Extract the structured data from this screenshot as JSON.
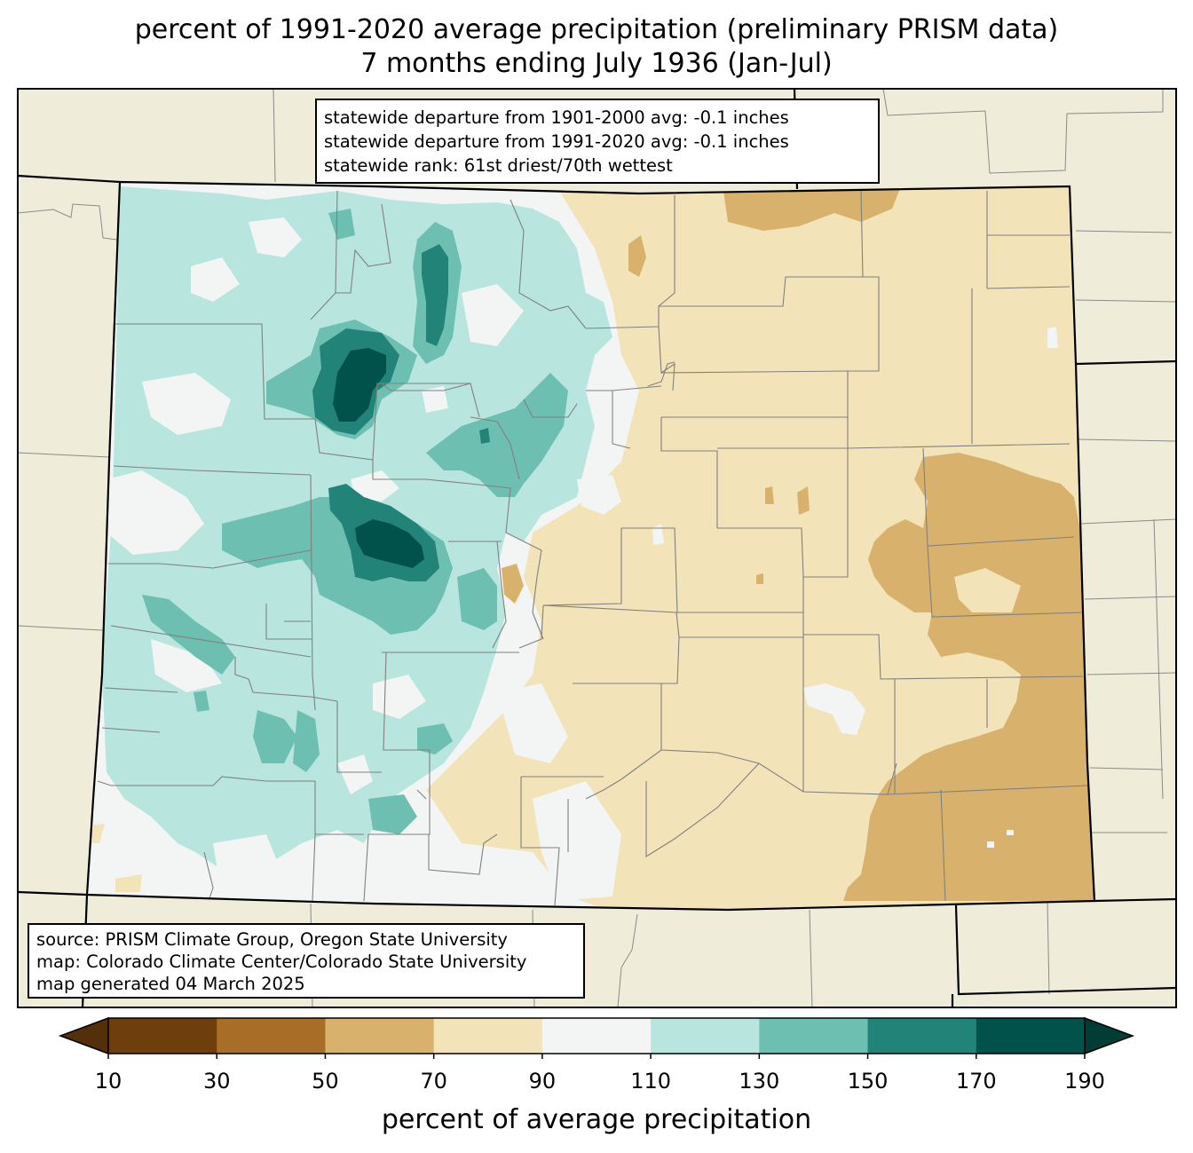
{
  "title": {
    "line1": "percent of 1991-2020 average precipitation (preliminary PRISM data)",
    "line2": "7 months ending July 1936 (Jan-Jul)"
  },
  "stats_box": {
    "line1": "statewide departure from 1901-2000 avg: -0.1 inches",
    "line2": "statewide departure from 1991-2020 avg: -0.1 inches",
    "line3": "statewide rank: 61st driest/70th wettest"
  },
  "source_box": {
    "line1": "source: PRISM Climate Group, Oregon State University",
    "line2": "map: Colorado Climate Center/Colorado State University",
    "line3": "map generated 04 March 2025"
  },
  "colorbar": {
    "label": "percent of average precipitation",
    "ticks": [
      "10",
      "30",
      "50",
      "70",
      "90",
      "110",
      "130",
      "150",
      "170",
      "190"
    ],
    "colors": [
      "#6e3f0c",
      "#a86d26",
      "#d8b26d",
      "#f2e3b8",
      "#f3f5f4",
      "#b9e5df",
      "#6dbfb2",
      "#228479",
      "#00524a"
    ],
    "under_color": "#54300a",
    "over_color": "#003d35"
  },
  "map_colors": {
    "background": "#efedda",
    "state_fill": "#f3f5f4",
    "very_dry": "#d8b26d",
    "dry": "#f2e3b8",
    "wet": "#b9e5df",
    "wetter": "#6dbfb2",
    "much_wetter": "#228479",
    "wettest": "#00524a",
    "county_lines": "#808080",
    "state_border": "#000000"
  }
}
